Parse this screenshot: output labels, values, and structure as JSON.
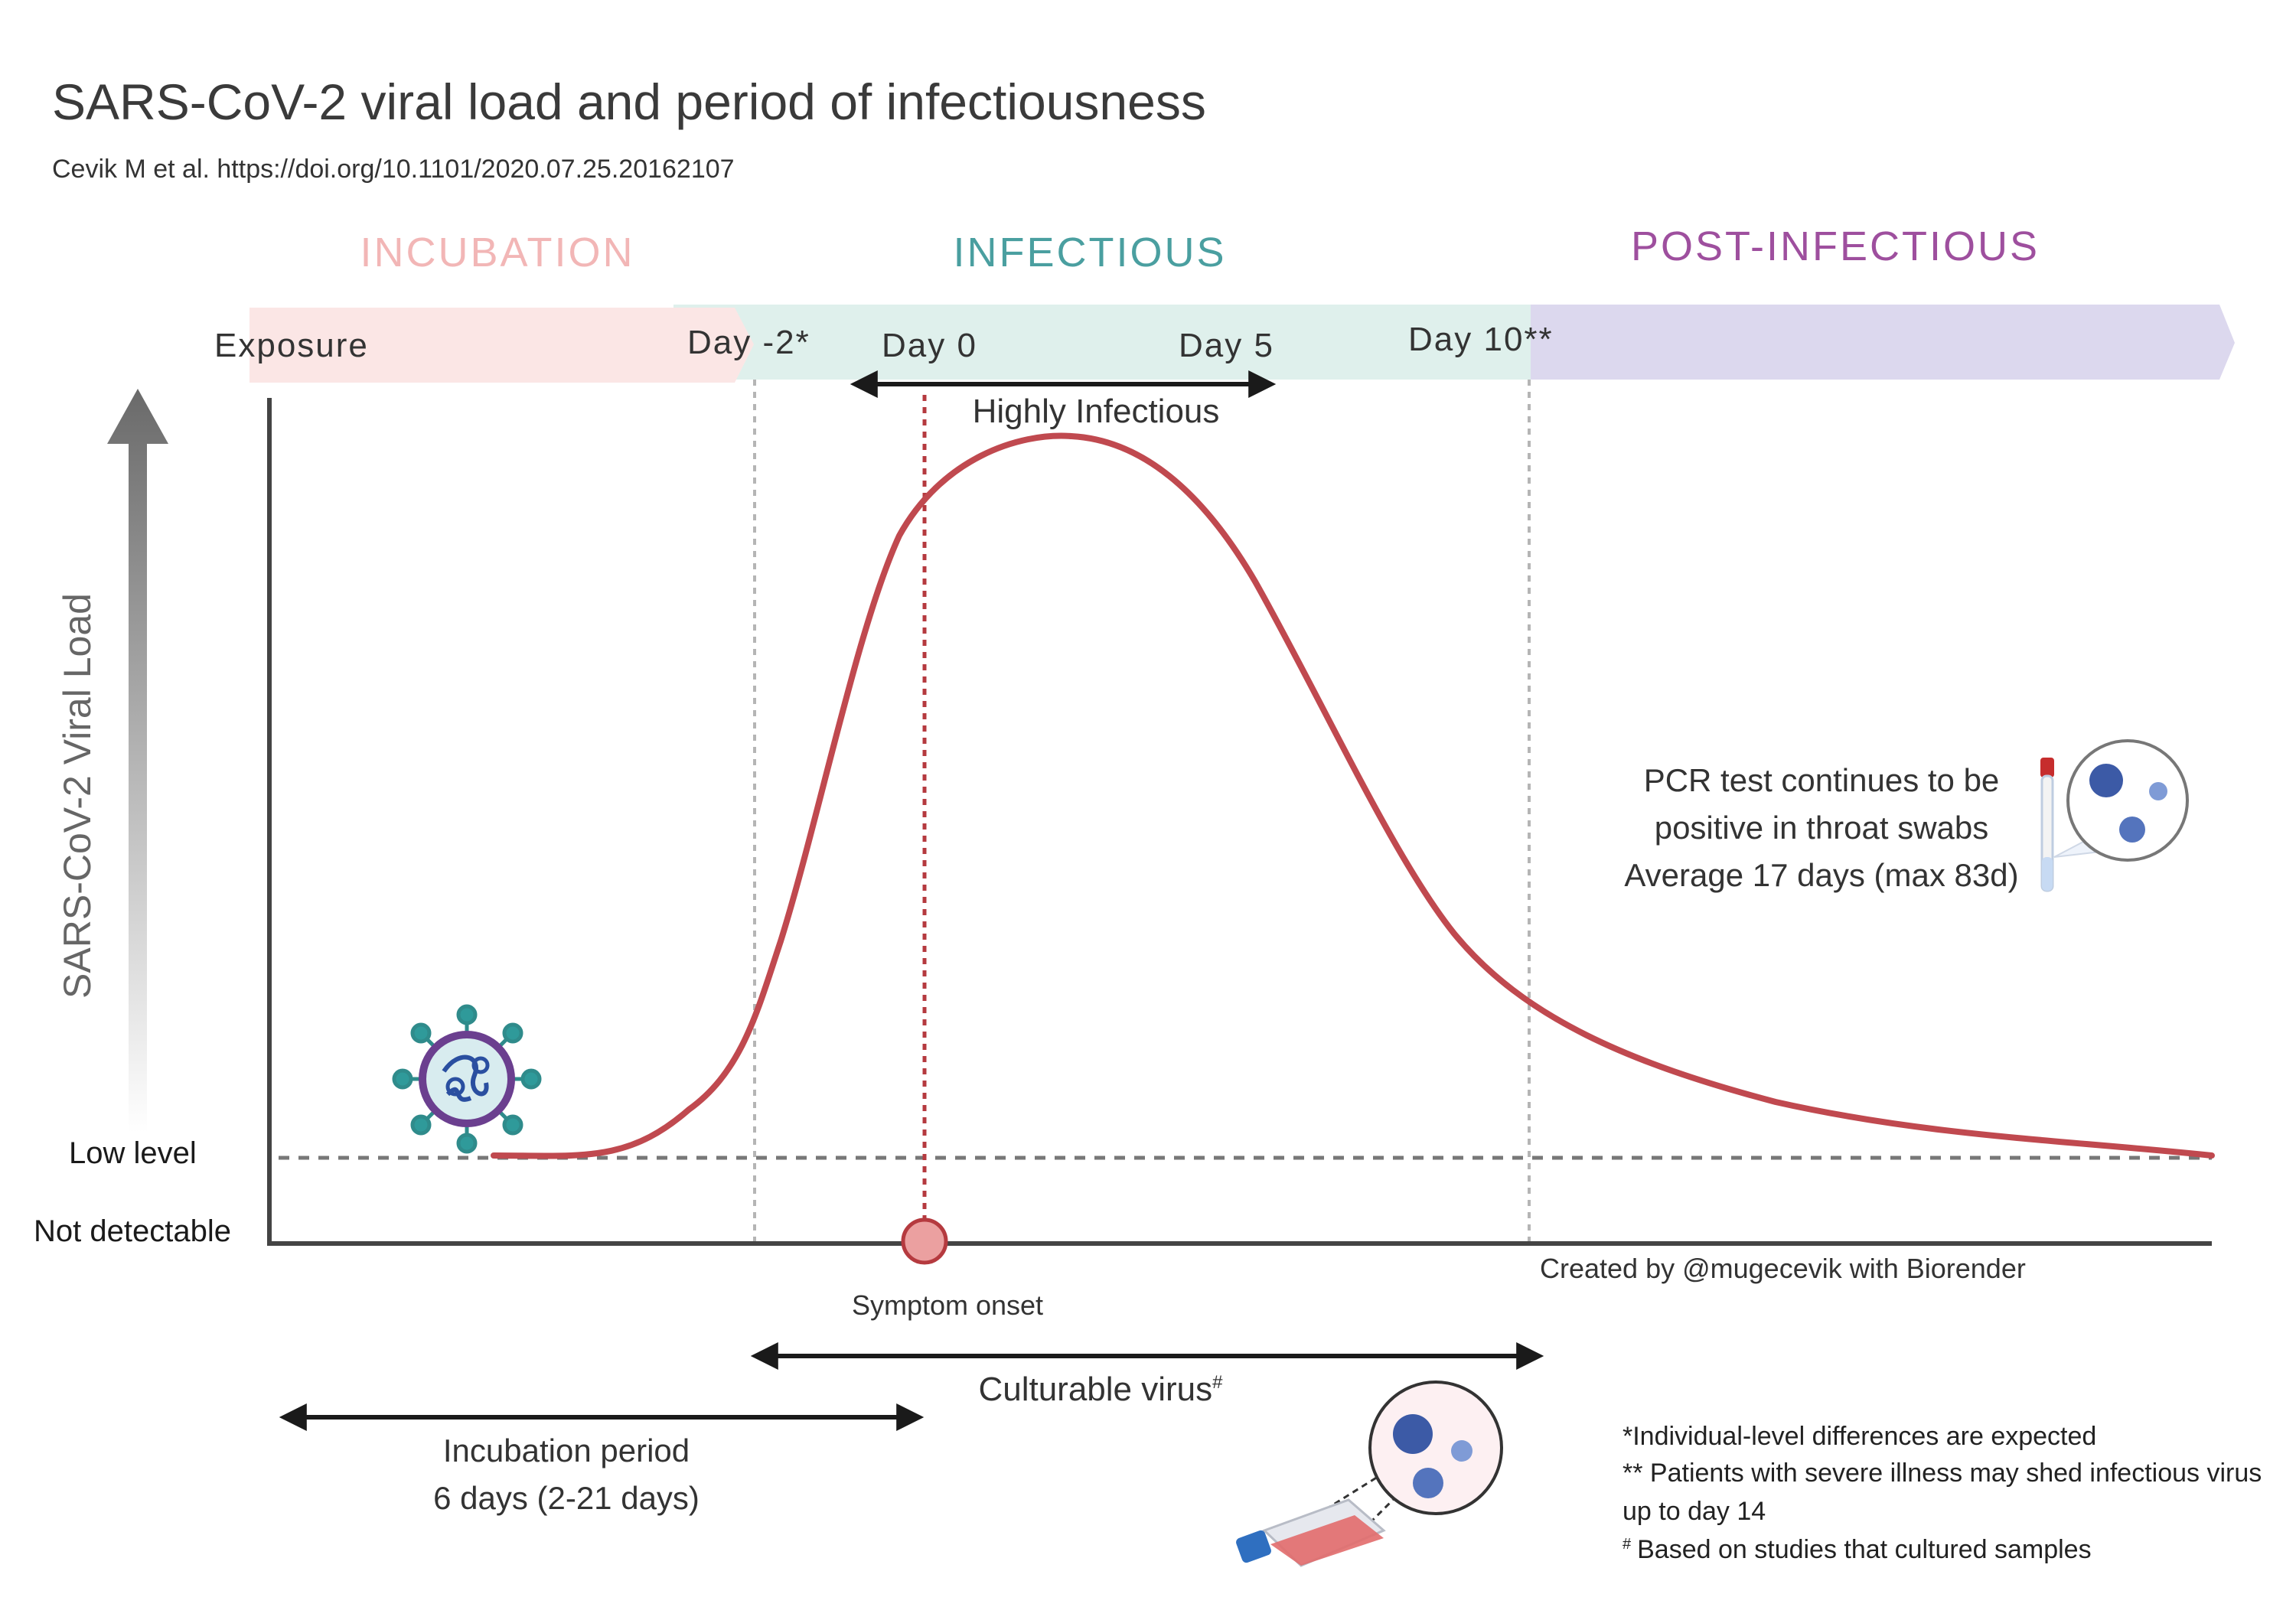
{
  "title": "SARS-CoV-2 viral load and period of infectiousness",
  "citation": "Cevik M et al. https://doi.org/10.1101/2020.07.25.20162107",
  "phases": {
    "incubation": "INCUBATION",
    "infectious": "INFECTIOUS",
    "post_infectious": "POST-INFECTIOUS"
  },
  "timeline": {
    "exposure": "Exposure",
    "day_minus2": "Day -2*",
    "day_0": "Day 0",
    "day_5": "Day 5",
    "day_10": "Day 10**"
  },
  "highly_infectious": "Highly Infectious",
  "y_axis": {
    "label": "SARS-CoV-2 Viral Load",
    "low_level": "Low level",
    "not_detectable": "Not detectable"
  },
  "pcr_note": [
    "PCR test continues to be",
    "positive in throat swabs",
    "Average 17 days (max 83d)"
  ],
  "credit": "Created by @mugecevik with Biorender",
  "symptom_onset": "Symptom onset",
  "culturable_virus": "Culturable virus",
  "culturable_virus_mark": "#",
  "incubation_period": [
    "Incubation period",
    "6 days (2-21 days)"
  ],
  "footnotes": [
    "*Individual-level differences are expected",
    "** Patients with severe illness may shed infectious virus",
    "up to day 14",
    "Based on studies that cultured samples"
  ],
  "footnote_mark": "#",
  "colors": {
    "incubation": "#f2b6b6",
    "infectious": "#4a9fa0",
    "post_infectious": "#9e4f9e",
    "curve": "#c0494f",
    "band_incubation": "#fbe6e5",
    "band_infectious": "#dff0ec",
    "band_post": "#dcd8ee"
  }
}
